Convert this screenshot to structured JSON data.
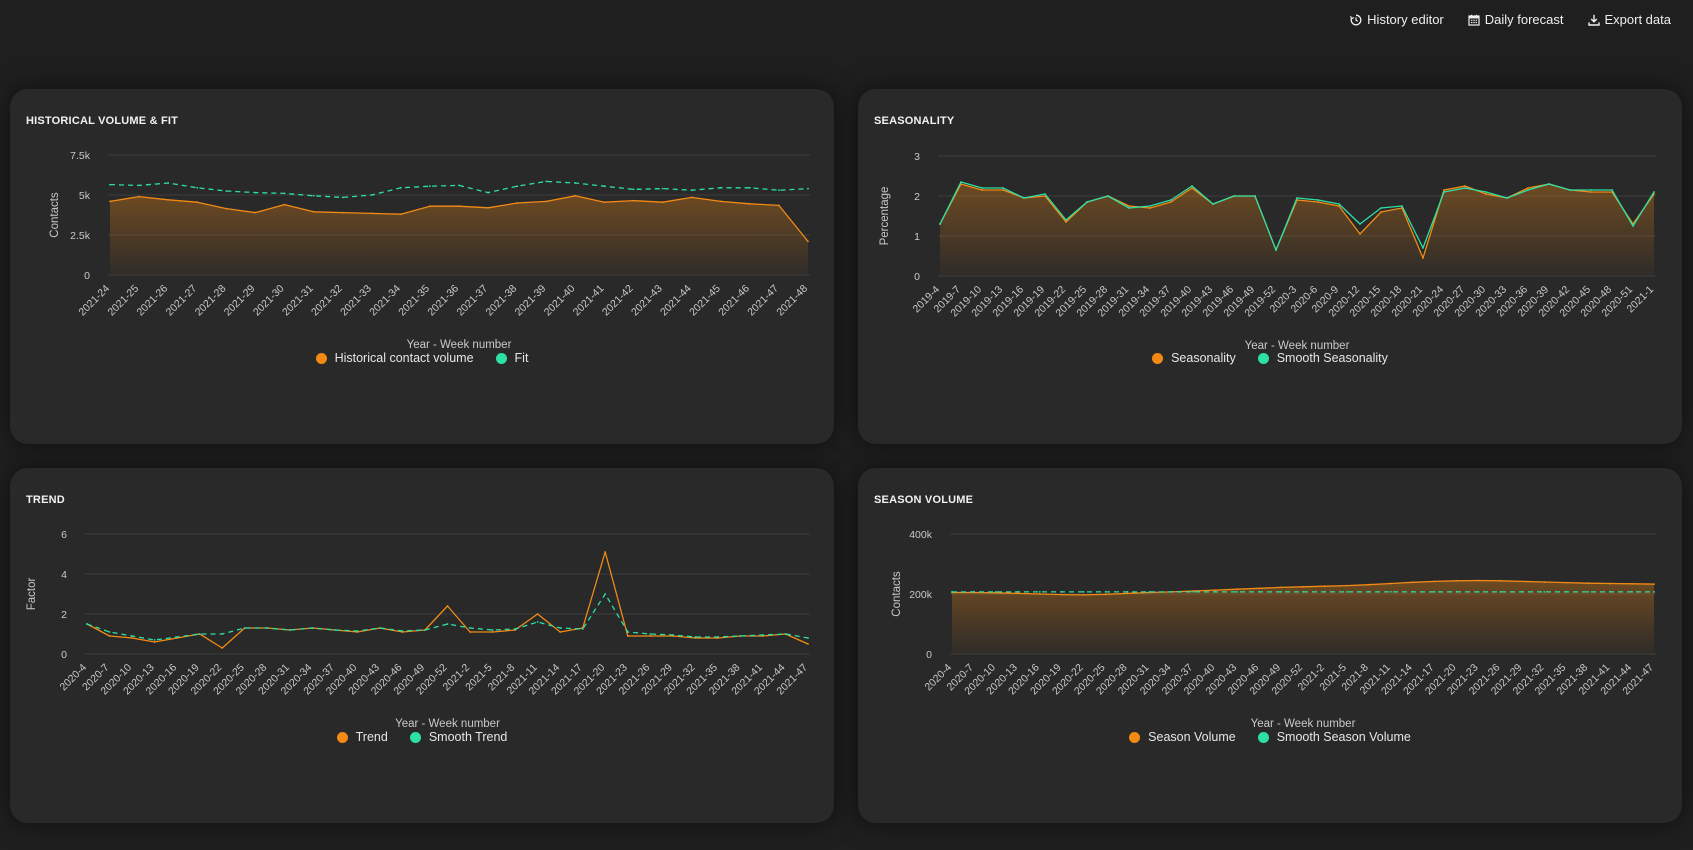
{
  "toolbar": {
    "history_editor": "History editor",
    "daily_forecast": "Daily forecast",
    "export_data": "Export data"
  },
  "colors": {
    "orange": "#f28a14",
    "green": "#2de0a6",
    "grid": "#3d3d3d",
    "card": "#292929"
  },
  "chart_data": [
    {
      "type": "area",
      "title": "HISTORICAL VOLUME & FIT",
      "xlabel": "Year - Week number",
      "ylabel": "Contacts",
      "ylim": [
        0,
        7500
      ],
      "yticks": [
        0,
        2500,
        5000,
        7500
      ],
      "yticklabels": [
        "0",
        "2.5k",
        "5k",
        "7.5k"
      ],
      "grid": true,
      "legend": "bottom",
      "x": [
        "2021-24",
        "2021-25",
        "2021-26",
        "2021-27",
        "2021-28",
        "2021-29",
        "2021-30",
        "2021-31",
        "2021-32",
        "2021-33",
        "2021-34",
        "2021-35",
        "2021-36",
        "2021-37",
        "2021-38",
        "2021-39",
        "2021-40",
        "2021-41",
        "2021-42",
        "2021-43",
        "2021-44",
        "2021-45",
        "2021-46",
        "2021-47",
        "2021-48"
      ],
      "series": [
        {
          "name": "Historical contact volume",
          "style": "area",
          "values": [
            4600,
            4900,
            4700,
            4550,
            4150,
            3900,
            4400,
            3950,
            3900,
            3850,
            3800,
            4300,
            4300,
            4200,
            4500,
            4600,
            4950,
            4550,
            4650,
            4550,
            4850,
            4600,
            4450,
            4350,
            2100
          ]
        },
        {
          "name": "Fit",
          "style": "dashed",
          "values": [
            5650,
            5600,
            5750,
            5450,
            5250,
            5150,
            5100,
            4950,
            4850,
            5000,
            5450,
            5550,
            5600,
            5150,
            5550,
            5850,
            5750,
            5550,
            5350,
            5400,
            5300,
            5450,
            5450,
            5300,
            5400
          ]
        }
      ]
    },
    {
      "type": "area",
      "title": "SEASONALITY",
      "xlabel": "Year - Week number",
      "ylabel": "Percentage",
      "ylim": [
        0,
        3
      ],
      "yticks": [
        0,
        1,
        2,
        3
      ],
      "yticklabels": [
        "0",
        "1",
        "2",
        "3"
      ],
      "grid": true,
      "legend": "bottom",
      "x": [
        "2019-4",
        "2019-7",
        "2019-10",
        "2019-13",
        "2019-16",
        "2019-19",
        "2019-22",
        "2019-25",
        "2019-28",
        "2019-31",
        "2019-34",
        "2019-37",
        "2019-40",
        "2019-43",
        "2019-46",
        "2019-49",
        "2019-52",
        "2020-3",
        "2020-6",
        "2020-9",
        "2020-12",
        "2020-15",
        "2020-18",
        "2020-21",
        "2020-24",
        "2020-27",
        "2020-30",
        "2020-33",
        "2020-36",
        "2020-39",
        "2020-42",
        "2020-45",
        "2020-48",
        "2020-51",
        "2021-1"
      ],
      "series": [
        {
          "name": "Seasonality",
          "style": "area",
          "values": [
            1.3,
            2.3,
            2.15,
            2.15,
            1.95,
            2.0,
            1.35,
            1.85,
            2.0,
            1.75,
            1.7,
            1.85,
            2.2,
            1.8,
            2.0,
            2.0,
            0.65,
            1.9,
            1.85,
            1.75,
            1.05,
            1.6,
            1.7,
            0.45,
            2.15,
            2.25,
            2.05,
            1.95,
            2.2,
            2.3,
            2.15,
            2.1,
            2.1,
            1.3,
            2.05
          ]
        },
        {
          "name": "Smooth Seasonality",
          "style": "line",
          "values": [
            1.3,
            2.35,
            2.2,
            2.2,
            1.95,
            2.05,
            1.4,
            1.85,
            2.0,
            1.7,
            1.75,
            1.9,
            2.25,
            1.8,
            2.0,
            2.0,
            0.65,
            1.95,
            1.9,
            1.8,
            1.3,
            1.7,
            1.75,
            0.7,
            2.1,
            2.2,
            2.1,
            1.95,
            2.15,
            2.3,
            2.15,
            2.15,
            2.15,
            1.25,
            2.1
          ]
        }
      ]
    },
    {
      "type": "line",
      "title": "TREND",
      "xlabel": "Year - Week number",
      "ylabel": "Factor",
      "ylim": [
        0,
        6
      ],
      "yticks": [
        0,
        2,
        4,
        6
      ],
      "yticklabels": [
        "0",
        "2",
        "4",
        "6"
      ],
      "grid": true,
      "legend": "bottom",
      "x": [
        "2020-4",
        "2020-7",
        "2020-10",
        "2020-13",
        "2020-16",
        "2020-19",
        "2020-22",
        "2020-25",
        "2020-28",
        "2020-31",
        "2020-34",
        "2020-37",
        "2020-40",
        "2020-43",
        "2020-46",
        "2020-49",
        "2020-52",
        "2021-2",
        "2021-5",
        "2021-8",
        "2021-11",
        "2021-14",
        "2021-17",
        "2021-20",
        "2021-23",
        "2021-26",
        "2021-29",
        "2021-32",
        "2021-35",
        "2021-38",
        "2021-41",
        "2021-44",
        "2021-47"
      ],
      "series": [
        {
          "name": "Trend",
          "style": "line",
          "values": [
            1.5,
            0.9,
            0.8,
            0.6,
            0.8,
            1.0,
            0.3,
            1.3,
            1.3,
            1.2,
            1.3,
            1.2,
            1.1,
            1.3,
            1.1,
            1.2,
            2.4,
            1.1,
            1.1,
            1.2,
            2.0,
            1.1,
            1.3,
            5.1,
            0.9,
            0.9,
            0.9,
            0.8,
            0.8,
            0.9,
            0.9,
            1.0,
            0.5
          ]
        },
        {
          "name": "Smooth Trend",
          "style": "dashed",
          "values": [
            1.5,
            1.1,
            0.9,
            0.7,
            0.85,
            1.0,
            1.0,
            1.3,
            1.3,
            1.2,
            1.3,
            1.2,
            1.15,
            1.3,
            1.15,
            1.2,
            1.5,
            1.3,
            1.2,
            1.25,
            1.6,
            1.3,
            1.25,
            3.0,
            1.1,
            1.0,
            0.95,
            0.85,
            0.85,
            0.9,
            0.95,
            1.0,
            0.8
          ]
        }
      ]
    },
    {
      "type": "area",
      "title": "SEASON VOLUME",
      "xlabel": "Year - Week number",
      "ylabel": "Contacts",
      "ylim": [
        0,
        400000
      ],
      "yticks": [
        0,
        200000,
        400000
      ],
      "yticklabels": [
        "0",
        "200k",
        "400k"
      ],
      "grid": true,
      "legend": "bottom",
      "x": [
        "2020-4",
        "2020-7",
        "2020-10",
        "2020-13",
        "2020-16",
        "2020-19",
        "2020-22",
        "2020-25",
        "2020-28",
        "2020-31",
        "2020-34",
        "2020-37",
        "2020-40",
        "2020-43",
        "2020-46",
        "2020-49",
        "2020-52",
        "2021-2",
        "2021-5",
        "2021-8",
        "2021-11",
        "2021-14",
        "2021-17",
        "2021-20",
        "2021-23",
        "2021-26",
        "2021-29",
        "2021-32",
        "2021-35",
        "2021-38",
        "2021-41",
        "2021-44",
        "2021-47"
      ],
      "series": [
        {
          "name": "Season Volume",
          "style": "area",
          "values": [
            205000,
            205000,
            204000,
            202000,
            200000,
            198000,
            197000,
            199000,
            202000,
            205000,
            207000,
            210000,
            213000,
            216000,
            219000,
            222000,
            224000,
            226000,
            228000,
            231000,
            235000,
            239000,
            242000,
            244000,
            245000,
            244000,
            242000,
            240000,
            238000,
            236000,
            235000,
            234000,
            233000
          ]
        },
        {
          "name": "Smooth Season Volume",
          "style": "dashed",
          "values": [
            207000,
            207000,
            207000,
            207000,
            207000,
            207000,
            207000,
            207000,
            207000,
            207000,
            207000,
            207000,
            207000,
            207000,
            207000,
            207000,
            207000,
            207000,
            207000,
            207000,
            207000,
            207000,
            207000,
            207000,
            207000,
            207000,
            207000,
            207000,
            207000,
            207000,
            207000,
            207000,
            207000
          ]
        }
      ]
    }
  ]
}
